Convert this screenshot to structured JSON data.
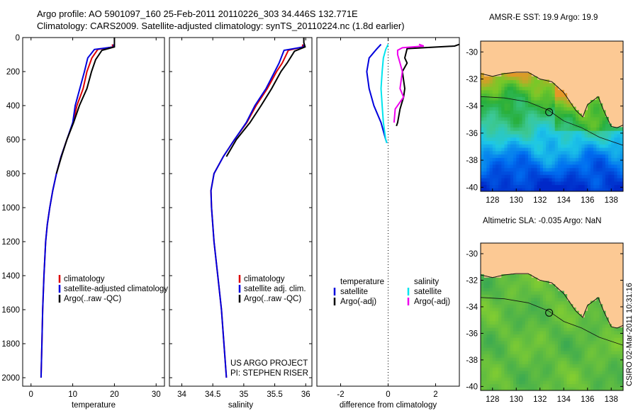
{
  "header": {
    "line1": "Argo profile: AO 5901097_160 25-Feb-2011 20110226_303 34.446S 132.771E",
    "line2": "Climatology: CARS2009. Satellite-adjusted climatology: synTS_20110224.nc (1.8d earlier)"
  },
  "side_label": "CSIRO 02-Mar-2011 10:31:16",
  "colors": {
    "climatology": "#dd0000",
    "satellite": "#0000dd",
    "argo": "#000000",
    "diff_temperature": "#0000dd",
    "diff_satellite_salinity": "#00e5ee",
    "diff_argo_salinity": "#ee00ee",
    "land": "#fcc994"
  },
  "chart_data": [
    {
      "type": "line",
      "xlabel": "temperature",
      "ylabel": "",
      "xlim": [
        -2,
        32
      ],
      "ylim": [
        2050,
        0
      ],
      "xticks": [
        0,
        10,
        20,
        30
      ],
      "yticks": [
        0,
        200,
        400,
        600,
        800,
        1000,
        1200,
        1400,
        1600,
        1800,
        2000
      ],
      "legend": [
        "climatology",
        "satellite-adjusted climatology",
        "Argo(..raw -QC)"
      ],
      "series": [
        {
          "name": "climatology",
          "color_key": "climatology",
          "points": [
            [
              19.5,
              40
            ],
            [
              19.6,
              55
            ],
            [
              16,
              70
            ],
            [
              14.6,
              120
            ],
            [
              13.4,
              200
            ],
            [
              12.5,
              300
            ],
            [
              11,
              400
            ],
            [
              10.1,
              500
            ],
            [
              8.6,
              600
            ],
            [
              7.2,
              700
            ],
            [
              6.1,
              800
            ],
            [
              5.2,
              900
            ],
            [
              4.5,
              1000
            ],
            [
              3.9,
              1100
            ],
            [
              3.5,
              1200
            ],
            [
              3.1,
              1400
            ],
            [
              2.8,
              1600
            ],
            [
              2.6,
              1800
            ],
            [
              2.4,
              2000
            ]
          ]
        },
        {
          "name": "satellite-adjusted climatology",
          "color_key": "satellite",
          "points": [
            [
              19.8,
              40
            ],
            [
              19.9,
              55
            ],
            [
              15.2,
              70
            ],
            [
              13.6,
              120
            ],
            [
              12.8,
              200
            ],
            [
              11.7,
              300
            ],
            [
              10.6,
              400
            ],
            [
              10,
              500
            ],
            [
              8.6,
              600
            ],
            [
              7.2,
              700
            ],
            [
              6.1,
              800
            ],
            [
              5.2,
              900
            ],
            [
              4.5,
              1000
            ],
            [
              3.9,
              1100
            ],
            [
              3.5,
              1200
            ],
            [
              3.1,
              1400
            ],
            [
              2.8,
              1600
            ],
            [
              2.6,
              1800
            ],
            [
              2.4,
              2000
            ]
          ]
        },
        {
          "name": "Argo(..raw -QC)",
          "color_key": "argo",
          "points": [
            [
              20,
              0
            ],
            [
              20,
              30
            ],
            [
              20,
              55
            ],
            [
              17,
              75
            ],
            [
              15.5,
              130
            ],
            [
              14.5,
              200
            ],
            [
              13.4,
              300
            ],
            [
              11.6,
              400
            ],
            [
              10.2,
              500
            ],
            [
              8.6,
              600
            ],
            [
              7.3,
              700
            ],
            [
              6.1,
              800
            ]
          ]
        }
      ]
    },
    {
      "type": "line",
      "xlabel": "salinity",
      "ylabel": "",
      "xlim": [
        33.8,
        36.1
      ],
      "ylim": [
        2050,
        0
      ],
      "xticks": [
        34,
        34.5,
        35,
        35.5,
        36
      ],
      "yticks": [
        0,
        200,
        400,
        600,
        800,
        1000,
        1200,
        1400,
        1600,
        1800,
        2000
      ],
      "legend": [
        "climatology",
        "satellite adj. clim.",
        "Argo(..raw -QC)"
      ],
      "annotations": [
        "US ARGO PROJECT",
        "PI: STEPHEN RISER"
      ],
      "series": [
        {
          "name": "climatology",
          "color_key": "climatology",
          "points": [
            [
              35.95,
              40
            ],
            [
              35.95,
              55
            ],
            [
              35.72,
              75
            ],
            [
              35.62,
              150
            ],
            [
              35.53,
              200
            ],
            [
              35.38,
              300
            ],
            [
              35.2,
              400
            ],
            [
              35.05,
              500
            ],
            [
              34.85,
              600
            ],
            [
              34.67,
              700
            ],
            [
              34.52,
              800
            ],
            [
              34.47,
              900
            ],
            [
              34.48,
              1000
            ],
            [
              34.52,
              1200
            ],
            [
              34.58,
              1400
            ],
            [
              34.64,
              1600
            ],
            [
              34.68,
              1800
            ],
            [
              34.72,
              2000
            ]
          ]
        },
        {
          "name": "satellite adj. clim.",
          "color_key": "satellite",
          "points": [
            [
              35.97,
              40
            ],
            [
              35.97,
              55
            ],
            [
              35.65,
              75
            ],
            [
              35.57,
              150
            ],
            [
              35.5,
              200
            ],
            [
              35.36,
              300
            ],
            [
              35.18,
              400
            ],
            [
              35.04,
              500
            ],
            [
              34.85,
              600
            ],
            [
              34.67,
              700
            ],
            [
              34.52,
              800
            ],
            [
              34.47,
              900
            ],
            [
              34.48,
              1000
            ],
            [
              34.52,
              1200
            ],
            [
              34.58,
              1400
            ],
            [
              34.64,
              1600
            ],
            [
              34.68,
              1800
            ],
            [
              34.72,
              2000
            ]
          ]
        },
        {
          "name": "Argo(..raw -QC)",
          "color_key": "argo",
          "points": [
            [
              35.97,
              0
            ],
            [
              35.97,
              30
            ],
            [
              35.99,
              55
            ],
            [
              35.82,
              80
            ],
            [
              35.7,
              150
            ],
            [
              35.6,
              200
            ],
            [
              35.45,
              300
            ],
            [
              35.28,
              400
            ],
            [
              35.1,
              500
            ],
            [
              34.88,
              600
            ],
            [
              34.72,
              700
            ]
          ]
        }
      ]
    },
    {
      "type": "line",
      "xlabel": "difference from climatology",
      "ylabel": "",
      "xlim": [
        -3,
        3
      ],
      "ylim": [
        2050,
        0
      ],
      "xticks": [
        -2,
        0,
        2
      ],
      "legend": [
        "temperature",
        "satellite",
        "Argo(-adj)",
        "salinity",
        "satellite",
        "Argo(-adj)"
      ],
      "series": [
        {
          "name": "satellite",
          "color_key": "diff_temperature",
          "points": [
            [
              -0.3,
              40
            ],
            [
              -0.5,
              70
            ],
            [
              -0.8,
              120
            ],
            [
              -0.9,
              200
            ],
            [
              -0.8,
              300
            ],
            [
              -0.6,
              400
            ],
            [
              -0.3,
              500
            ],
            [
              -0.1,
              600
            ],
            [
              -0.05,
              620
            ]
          ]
        },
        {
          "name": "Argo(-adj)",
          "color_key": "argo",
          "points": [
            [
              3,
              40
            ],
            [
              2.8,
              50
            ],
            [
              0.8,
              65
            ],
            [
              0.7,
              120
            ],
            [
              0.8,
              150
            ],
            [
              0.6,
              200
            ],
            [
              0.7,
              300
            ],
            [
              0.65,
              350
            ],
            [
              0.5,
              420
            ],
            [
              0.4,
              500
            ],
            [
              0.35,
              520
            ]
          ]
        },
        {
          "name": "satellite",
          "color_key": "diff_satellite_salinity",
          "points": [
            [
              0.0,
              40
            ],
            [
              -0.1,
              70
            ],
            [
              -0.2,
              120
            ],
            [
              -0.25,
              200
            ],
            [
              -0.3,
              300
            ],
            [
              -0.25,
              400
            ],
            [
              -0.2,
              500
            ],
            [
              -0.1,
              600
            ],
            [
              -0.05,
              620
            ]
          ]
        },
        {
          "name": "Argo(-adj)",
          "color_key": "diff_argo_salinity",
          "points": [
            [
              1.3,
              40
            ],
            [
              1.5,
              50
            ],
            [
              0.6,
              60
            ],
            [
              0.4,
              75
            ],
            [
              0.4,
              100
            ],
            [
              0.5,
              150
            ],
            [
              0.6,
              200
            ],
            [
              0.5,
              300
            ],
            [
              0.65,
              350
            ],
            [
              0.3,
              420
            ],
            [
              0.25,
              500
            ]
          ]
        }
      ]
    },
    {
      "type": "heatmap",
      "title": "AMSR-E SST: 19.9 Argo: 19.9",
      "xlim": [
        127,
        139
      ],
      "ylim": [
        -40.3,
        -29.2
      ],
      "xticks": [
        128,
        130,
        132,
        134,
        136,
        138
      ],
      "yticks": [
        -30,
        -32,
        -34,
        -36,
        -38,
        -40
      ]
    },
    {
      "type": "heatmap",
      "title": "Altimetric SLA: -0.035 Argo: NaN",
      "xlim": [
        127,
        139
      ],
      "ylim": [
        -40.3,
        -29.2
      ],
      "xticks": [
        128,
        130,
        132,
        134,
        136,
        138
      ],
      "yticks": [
        -30,
        -32,
        -34,
        -36,
        -38,
        -40
      ]
    }
  ]
}
